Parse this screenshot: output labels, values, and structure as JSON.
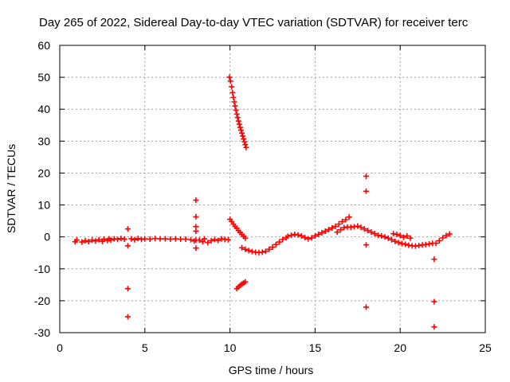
{
  "chart_data": {
    "type": "scatter",
    "title": "Day 265 of 2022, Sidereal Day-to-day VTEC variation (SDTVAR) for receiver terc",
    "xlabel": "GPS time / hours",
    "ylabel": "SDTVAR / TECUs",
    "xlim": [
      0,
      25
    ],
    "ylim": [
      -30,
      60
    ],
    "xticks": [
      0,
      5,
      10,
      15,
      20,
      25
    ],
    "yticks": [
      -30,
      -20,
      -10,
      0,
      10,
      20,
      30,
      40,
      50,
      60
    ],
    "grid": true,
    "marker": "+",
    "color": "#ff0000",
    "series": [
      {
        "name": "SDTVAR",
        "points": [
          [
            0.9,
            -1.5
          ],
          [
            1.0,
            -1.0
          ],
          [
            1.3,
            -1.6
          ],
          [
            1.5,
            -1.2
          ],
          [
            1.7,
            -1.5
          ],
          [
            1.9,
            -1.0
          ],
          [
            2.1,
            -1.3
          ],
          [
            2.3,
            -0.9
          ],
          [
            2.5,
            -1.4
          ],
          [
            2.6,
            -0.7
          ],
          [
            2.8,
            -1.1
          ],
          [
            2.9,
            -0.6
          ],
          [
            3.0,
            -1.0
          ],
          [
            3.2,
            -0.6
          ],
          [
            3.4,
            -0.8
          ],
          [
            3.6,
            -0.5
          ],
          [
            3.8,
            -0.7
          ],
          [
            4.0,
            2.5
          ],
          [
            4.0,
            -2.8
          ],
          [
            4.0,
            -16.2
          ],
          [
            4.0,
            -25.0
          ],
          [
            4.2,
            -0.6
          ],
          [
            4.4,
            -0.9
          ],
          [
            4.6,
            -0.5
          ],
          [
            4.8,
            -0.8
          ],
          [
            5.0,
            -0.6
          ],
          [
            5.3,
            -0.7
          ],
          [
            5.6,
            -0.5
          ],
          [
            5.9,
            -0.6
          ],
          [
            6.2,
            -0.6
          ],
          [
            6.5,
            -0.7
          ],
          [
            6.8,
            -0.6
          ],
          [
            7.1,
            -0.7
          ],
          [
            7.4,
            -0.7
          ],
          [
            7.7,
            -0.9
          ],
          [
            7.9,
            -1.3
          ],
          [
            8.0,
            -1.0
          ],
          [
            8.0,
            11.5
          ],
          [
            8.0,
            6.3
          ],
          [
            8.0,
            3.2
          ],
          [
            8.0,
            1.8
          ],
          [
            8.0,
            -3.5
          ],
          [
            8.2,
            -1.0
          ],
          [
            8.4,
            -1.5
          ],
          [
            8.5,
            -0.6
          ],
          [
            8.7,
            -1.8
          ],
          [
            8.9,
            -1.2
          ],
          [
            9.1,
            -0.8
          ],
          [
            9.3,
            -1.1
          ],
          [
            9.5,
            -0.6
          ],
          [
            9.7,
            -0.8
          ],
          [
            9.9,
            -0.9
          ],
          [
            9.97,
            50.0
          ],
          [
            10.03,
            48.8
          ],
          [
            10.1,
            47.0
          ],
          [
            10.15,
            45.2
          ],
          [
            10.2,
            43.7
          ],
          [
            10.25,
            42.3
          ],
          [
            10.3,
            41.0
          ],
          [
            10.35,
            39.7
          ],
          [
            10.4,
            38.5
          ],
          [
            10.45,
            37.4
          ],
          [
            10.5,
            36.3
          ],
          [
            10.55,
            35.3
          ],
          [
            10.6,
            34.3
          ],
          [
            10.65,
            33.4
          ],
          [
            10.7,
            32.5
          ],
          [
            10.75,
            31.6
          ],
          [
            10.8,
            30.7
          ],
          [
            10.85,
            29.8
          ],
          [
            10.9,
            28.9
          ],
          [
            10.95,
            28.0
          ],
          [
            10.0,
            5.5
          ],
          [
            10.1,
            4.8
          ],
          [
            10.2,
            4.0
          ],
          [
            10.3,
            3.3
          ],
          [
            10.4,
            2.7
          ],
          [
            10.5,
            2.0
          ],
          [
            10.6,
            1.4
          ],
          [
            10.7,
            0.8
          ],
          [
            10.8,
            0.2
          ],
          [
            10.9,
            -0.4
          ],
          [
            10.4,
            -16.2
          ],
          [
            10.5,
            -15.7
          ],
          [
            10.6,
            -15.2
          ],
          [
            10.7,
            -14.8
          ],
          [
            10.8,
            -14.4
          ],
          [
            10.9,
            -14.1
          ],
          [
            10.7,
            -3.4
          ],
          [
            10.9,
            -3.9
          ],
          [
            11.1,
            -4.3
          ],
          [
            11.3,
            -4.6
          ],
          [
            11.5,
            -4.8
          ],
          [
            11.7,
            -4.9
          ],
          [
            11.9,
            -4.8
          ],
          [
            12.1,
            -4.5
          ],
          [
            12.3,
            -3.9
          ],
          [
            12.5,
            -3.2
          ],
          [
            12.7,
            -2.4
          ],
          [
            12.9,
            -1.6
          ],
          [
            13.1,
            -0.8
          ],
          [
            13.3,
            -0.3
          ],
          [
            13.4,
            0.2
          ],
          [
            13.6,
            0.5
          ],
          [
            13.8,
            0.8
          ],
          [
            14.0,
            0.6
          ],
          [
            14.2,
            0.3
          ],
          [
            14.4,
            -0.2
          ],
          [
            14.6,
            -0.6
          ],
          [
            14.8,
            -0.3
          ],
          [
            15.0,
            0.3
          ],
          [
            15.2,
            0.8
          ],
          [
            15.4,
            1.3
          ],
          [
            15.6,
            1.8
          ],
          [
            15.8,
            2.3
          ],
          [
            16.0,
            2.8
          ],
          [
            16.2,
            3.3
          ],
          [
            16.4,
            4.0
          ],
          [
            16.6,
            4.8
          ],
          [
            16.8,
            5.4
          ],
          [
            17.0,
            6.2
          ],
          [
            16.3,
            1.5
          ],
          [
            16.5,
            2.2
          ],
          [
            16.7,
            2.9
          ],
          [
            16.9,
            3.1
          ],
          [
            17.1,
            3.0
          ],
          [
            17.3,
            3.2
          ],
          [
            17.5,
            3.4
          ],
          [
            17.7,
            3.0
          ],
          [
            17.9,
            2.5
          ],
          [
            18.1,
            2.0
          ],
          [
            18.3,
            1.5
          ],
          [
            18.5,
            1.0
          ],
          [
            18.7,
            0.5
          ],
          [
            18.0,
            19.0
          ],
          [
            18.0,
            14.3
          ],
          [
            18.0,
            -2.5
          ],
          [
            18.0,
            -22.0
          ],
          [
            18.9,
            0.3
          ],
          [
            19.1,
            0.0
          ],
          [
            19.3,
            -0.4
          ],
          [
            19.5,
            -0.9
          ],
          [
            19.7,
            -1.4
          ],
          [
            19.9,
            -1.8
          ],
          [
            20.1,
            -2.1
          ],
          [
            20.3,
            -2.3
          ],
          [
            20.5,
            -2.6
          ],
          [
            20.7,
            -2.8
          ],
          [
            20.9,
            -2.9
          ],
          [
            21.1,
            -2.7
          ],
          [
            21.3,
            -2.5
          ],
          [
            21.5,
            -2.4
          ],
          [
            21.7,
            -2.2
          ],
          [
            21.9,
            -2.0
          ],
          [
            19.6,
            1.0
          ],
          [
            19.8,
            0.8
          ],
          [
            20.0,
            0.4
          ],
          [
            20.2,
            -0.1
          ],
          [
            20.4,
            0.3
          ],
          [
            20.6,
            -0.4
          ],
          [
            22.0,
            -7.0
          ],
          [
            22.0,
            -20.3
          ],
          [
            22.0,
            -28.2
          ],
          [
            22.1,
            -2.0
          ],
          [
            22.3,
            -1.2
          ],
          [
            22.5,
            -0.3
          ],
          [
            22.7,
            0.4
          ],
          [
            22.9,
            0.9
          ]
        ]
      }
    ]
  }
}
